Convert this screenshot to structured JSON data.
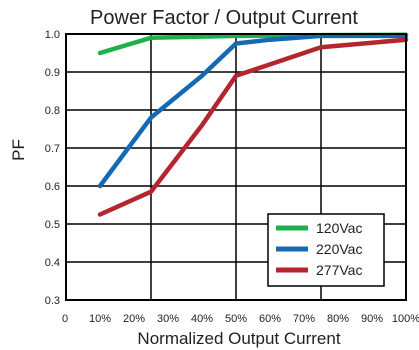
{
  "chart_data": {
    "type": "line",
    "title": "Power Factor / Output Current",
    "xlabel": "Normalized Output Current",
    "ylabel": "PF",
    "x_tick_labels": [
      "0",
      "10%",
      "20%",
      "30%",
      "40%",
      "50%",
      "60%",
      "70%",
      "80%",
      "90%",
      "100%"
    ],
    "y_tick_labels": [
      "0.3",
      "0.4",
      "0.5",
      "0.6",
      "0.7",
      "0.8",
      "0.9",
      "1.0"
    ],
    "xlim": [
      0,
      100
    ],
    "ylim": [
      0.3,
      1.0
    ],
    "grid": true,
    "legend_position": "bottom-right",
    "series": [
      {
        "name": "120Vac",
        "color": "#20b04a",
        "x": [
          10,
          25,
          50,
          75,
          100
        ],
        "y": [
          0.95,
          0.99,
          0.995,
          0.997,
          0.998
        ]
      },
      {
        "name": "220Vac",
        "color": "#1469b4",
        "x": [
          10,
          25,
          40,
          50,
          60,
          75,
          100
        ],
        "y": [
          0.6,
          0.78,
          0.89,
          0.975,
          0.985,
          0.995,
          0.995
        ]
      },
      {
        "name": "277Vac",
        "color": "#b3262f",
        "x": [
          10,
          25,
          40,
          50,
          60,
          75,
          100
        ],
        "y": [
          0.525,
          0.585,
          0.76,
          0.89,
          0.92,
          0.965,
          0.985
        ]
      }
    ]
  }
}
